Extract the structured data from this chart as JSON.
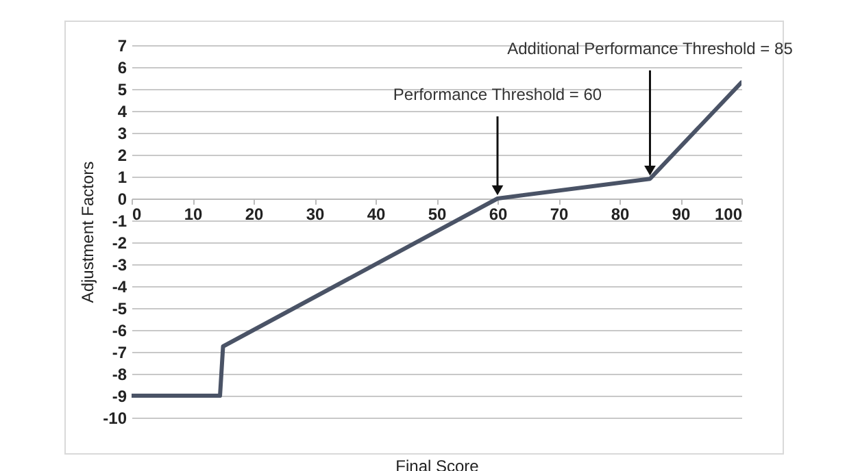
{
  "chart_data": {
    "type": "line",
    "xlabel": "Final Score",
    "ylabel": "Adjustment Factors",
    "x": [
      0,
      14.5,
      15,
      60,
      85,
      100
    ],
    "series": [
      {
        "color": "#4a5366",
        "values": [
          -9,
          -9,
          -6.75,
          0,
          0.9,
          5.3
        ]
      }
    ],
    "xlim": [
      0,
      100
    ],
    "xticks": [
      0,
      10,
      20,
      30,
      40,
      50,
      60,
      70,
      80,
      90,
      100
    ],
    "ylim": [
      -10,
      7
    ],
    "yticks": [
      -10,
      -9,
      -8,
      -7,
      -6,
      -5,
      -4,
      -3,
      -2,
      -1,
      0,
      1,
      2,
      3,
      4,
      5,
      6,
      7
    ],
    "grid": "y",
    "marker": "none",
    "line_style": "solid",
    "annotations": [
      {
        "text": "Performance Threshold = 60",
        "x": 60,
        "y": 0
      },
      {
        "text": "Additional Performance Threshold = 85",
        "x": 85,
        "y": 0.9
      }
    ]
  }
}
